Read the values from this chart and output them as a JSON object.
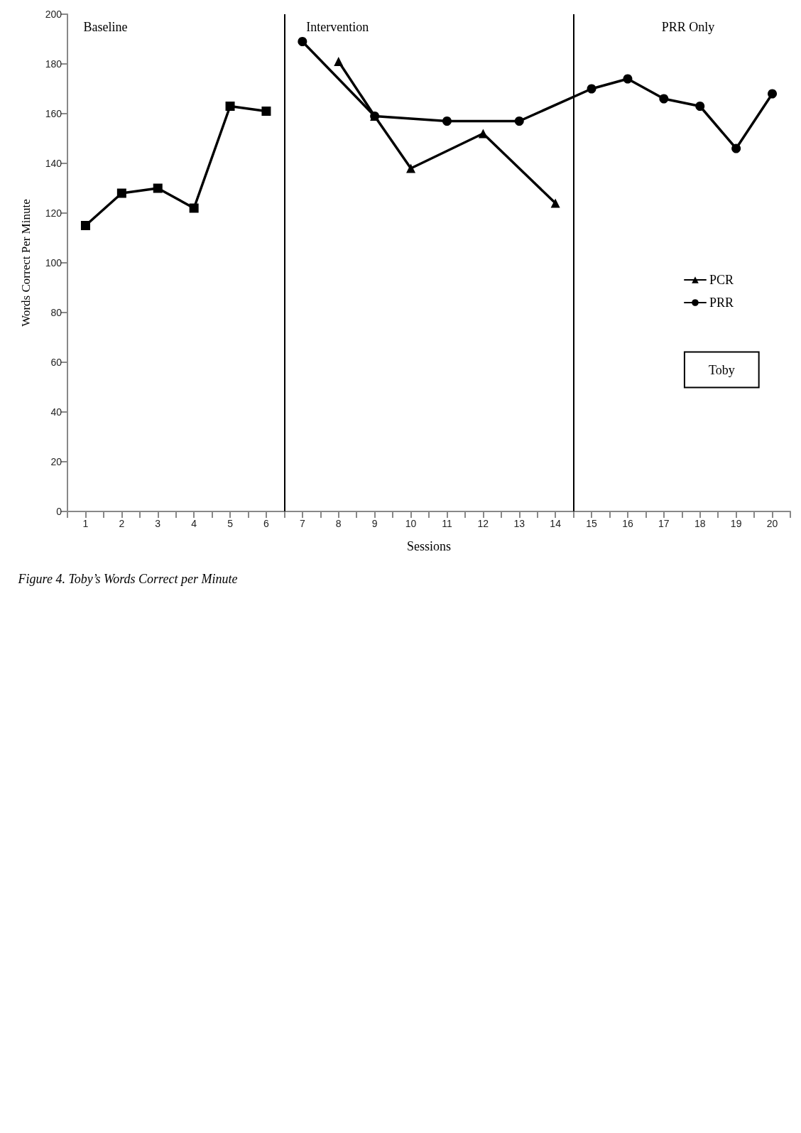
{
  "chart_data": {
    "type": "line",
    "xlabel": "Sessions",
    "ylabel": "Words Correct Per Minute",
    "annotations": [
      "Baseline",
      "Intervention",
      "PRR Only",
      "Toby",
      "Figure 4. Toby’s Words Correct per Minute"
    ],
    "series": [
      {
        "color": "#000000",
        "marker": "square",
        "x": [
          1,
          2,
          3,
          4,
          5,
          6
        ],
        "values": [
          115,
          128,
          130,
          122,
          163,
          161
        ]
      },
      {
        "name": "PCR",
        "color": "#000000",
        "marker": "triangle",
        "x": [
          8,
          9,
          10,
          12,
          14
        ],
        "values": [
          181,
          159,
          138,
          152,
          124
        ]
      },
      {
        "name": "PRR",
        "color": "#000000",
        "marker": "circle",
        "x": [
          7,
          9,
          11,
          13,
          15,
          16,
          17,
          18,
          19,
          20
        ],
        "values": [
          189,
          159,
          157,
          157,
          170,
          174,
          166,
          163,
          146,
          168
        ]
      }
    ],
    "xlim": [
      0.5,
      20.5
    ],
    "xticks": [
      {
        "value": 0.5,
        "label": null
      },
      1,
      {
        "value": 1.5,
        "label": null
      },
      2,
      {
        "value": 2.5,
        "label": null
      },
      3,
      {
        "value": 3.5,
        "label": null
      },
      4,
      {
        "value": 4.5,
        "label": null
      },
      5,
      {
        "value": 5.5,
        "label": null
      },
      6,
      {
        "value": 6.5,
        "label": null
      },
      7,
      {
        "value": 7.5,
        "label": null
      },
      8,
      {
        "value": 8.5,
        "label": null
      },
      9,
      {
        "value": 9.5,
        "label": null
      },
      10,
      {
        "value": 10.5,
        "label": null
      },
      11,
      {
        "value": 11.5,
        "label": null
      },
      12,
      {
        "value": 12.5,
        "label": null
      },
      13,
      {
        "value": 13.5,
        "label": null
      },
      14,
      {
        "value": 14.5,
        "label": null
      },
      15,
      {
        "value": 15.5,
        "label": null
      },
      16,
      {
        "value": 16.5,
        "label": null
      },
      17,
      {
        "value": 17.5,
        "label": null
      },
      18,
      {
        "value": 18.5,
        "label": null
      },
      19,
      {
        "value": 19.5,
        "label": null
      },
      20,
      {
        "value": 20.5,
        "label": null
      }
    ],
    "ylim": [
      0,
      200
    ],
    "yticks": [
      0,
      20,
      40,
      60,
      80,
      100,
      120,
      140,
      160,
      180,
      200
    ],
    "ref_lines": [
      {
        "axis": "x",
        "value": 6.5,
        "color": "#000000"
      },
      {
        "axis": "x",
        "value": 14.5,
        "color": "#000000"
      }
    ],
    "legend": "right"
  }
}
